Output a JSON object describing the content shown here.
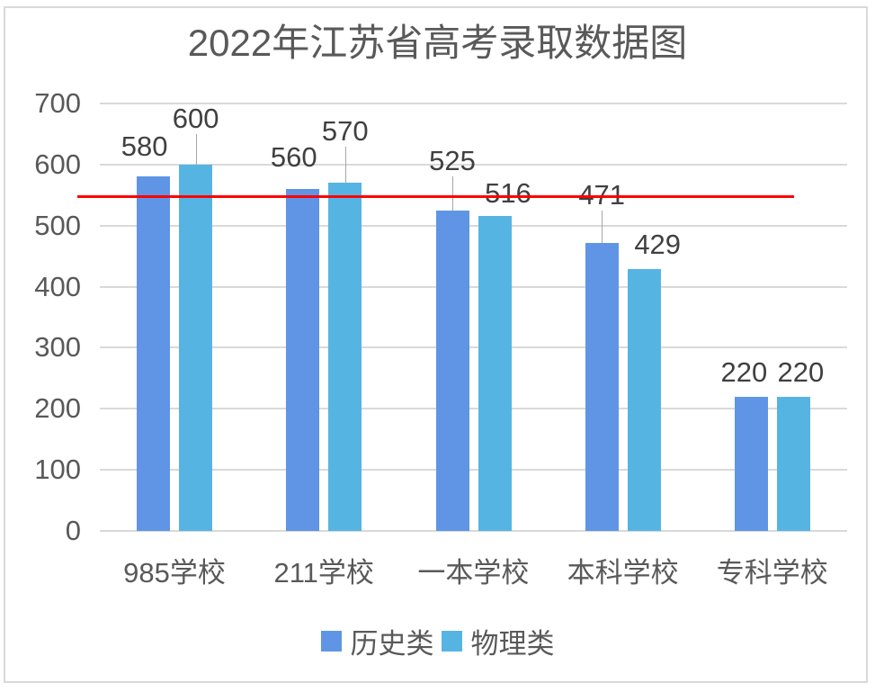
{
  "chart_data": {
    "type": "bar",
    "title": "2022年江苏省高考录取数据图",
    "categories": [
      "985学校",
      "211学校",
      "一本学校",
      "本科学校",
      "专科学校"
    ],
    "series": [
      {
        "name": "历史类",
        "color": "#5F95E4",
        "values": [
          580,
          560,
          525,
          471,
          220
        ]
      },
      {
        "name": "物理类",
        "color": "#56B4E3",
        "values": [
          600,
          570,
          516,
          429,
          220
        ]
      }
    ],
    "xlabel": "",
    "ylabel": "",
    "ylim": [
      0,
      700
    ],
    "yticks": [
      0,
      100,
      200,
      300,
      400,
      500,
      600,
      700
    ],
    "grid": true,
    "legend_position": "bottom",
    "data_labels": true,
    "reference_line": {
      "value": 548,
      "color": "#FF0000"
    }
  },
  "labels": {
    "title": "2022年江苏省高考录取数据图",
    "yticks": [
      "700",
      "600",
      "500",
      "400",
      "300",
      "200",
      "100",
      "0"
    ],
    "legend": [
      "历史类",
      "物理类"
    ]
  }
}
